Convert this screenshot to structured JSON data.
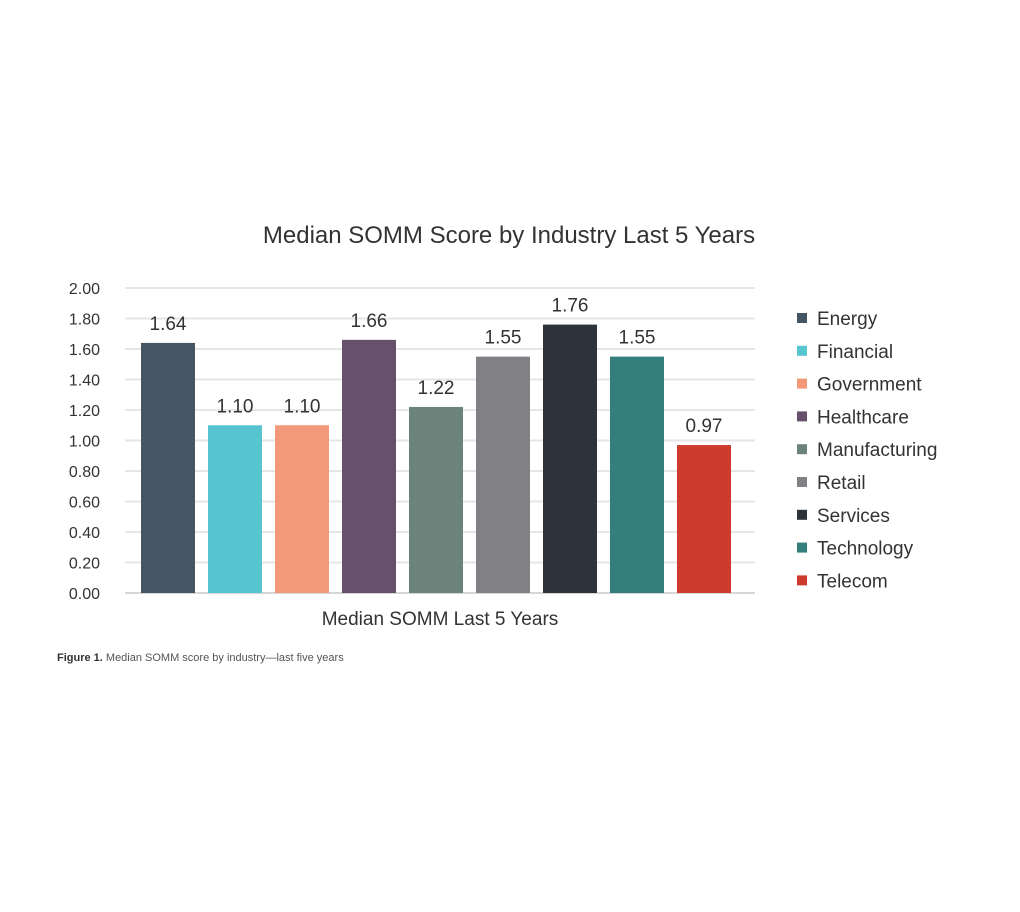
{
  "chart_data": {
    "type": "bar",
    "title": "Median SOMM Score by Industry Last 5 Years",
    "xlabel": "Median SOMM Last 5 Years",
    "ylabel": "",
    "ylim": [
      0,
      2
    ],
    "yticks": [
      "0.00",
      "0.20",
      "0.40",
      "0.60",
      "0.80",
      "1.00",
      "1.20",
      "1.40",
      "1.60",
      "1.80",
      "2.00"
    ],
    "grid": true,
    "legend_position": "right",
    "categories": [
      "Energy",
      "Financial",
      "Government",
      "Healthcare",
      "Manufacturing",
      "Retail",
      "Services",
      "Technology",
      "Telecom"
    ],
    "values": [
      1.64,
      1.1,
      1.1,
      1.66,
      1.22,
      1.55,
      1.76,
      1.55,
      0.97
    ],
    "labels": [
      "1.64",
      "1.10",
      "1.10",
      "1.66",
      "1.22",
      "1.55",
      "1.76",
      "1.55",
      "0.97"
    ],
    "colors": [
      "#465664",
      "#57c5cf",
      "#f39879",
      "#66506c",
      "#6b837b",
      "#808085",
      "#2d333b",
      "#347e7b",
      "#cd3b2d"
    ]
  },
  "caption": {
    "label": "Figure 1.",
    "text": " Median SOMM score by industry—last five years"
  }
}
